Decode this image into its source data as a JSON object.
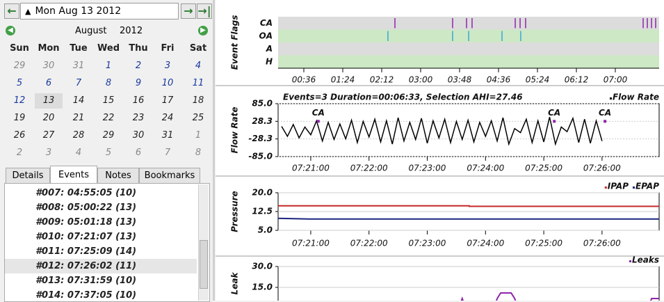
{
  "date_bar": {
    "date": "Mon Aug 13 2012"
  },
  "calendar": {
    "month": "August",
    "year": "2012",
    "weekdays": [
      "Sun",
      "Mon",
      "Tue",
      "Wed",
      "Thu",
      "Fri",
      "Sat"
    ],
    "weeks": [
      [
        29,
        30,
        31,
        1,
        2,
        3,
        4
      ],
      [
        5,
        6,
        7,
        8,
        9,
        10,
        11
      ],
      [
        12,
        13,
        14,
        15,
        16,
        17,
        18
      ],
      [
        19,
        20,
        21,
        22,
        23,
        24,
        25
      ],
      [
        26,
        27,
        28,
        29,
        30,
        31,
        1
      ],
      [
        2,
        3,
        4,
        5,
        6,
        7,
        8
      ]
    ]
  },
  "tabs": [
    "Details",
    "Events",
    "Notes",
    "Bookmarks"
  ],
  "events": [
    "#007: 04:55:05 (10)",
    "#008: 05:00:22 (13)",
    "#009: 05:01:18 (13)",
    "#010: 07:21:07 (13)",
    "#011: 07:25:09 (14)",
    "#012: 07:26:02 (11)",
    "#013: 07:31:59 (10)",
    "#014: 07:37:05 (10)"
  ],
  "graphs": {
    "event_flags": {
      "type": "event_flags",
      "y_title": "Event Flags",
      "rows": [
        {
          "name": "CA",
          "color": "#8e24aa",
          "x": [
            148.3,
            219.4,
            236.6,
            243.4,
            296.6,
            302.6,
            309.4,
            454.3,
            459.4,
            464.6,
            469.7
          ]
        },
        {
          "name": "OA",
          "color": "#3aa6d8",
          "x": [
            139.7,
            219.4,
            239.2,
            280.3,
            303.4
          ]
        },
        {
          "name": "A",
          "x": []
        },
        {
          "name": "H",
          "x": []
        }
      ],
      "xlim": [
        4.3,
        474
      ],
      "xticks": [
        {
          "value": 36,
          "label": "00:36"
        },
        {
          "value": 84,
          "label": "01:24"
        },
        {
          "value": 132,
          "label": "02:12"
        },
        {
          "value": 180,
          "label": "03:00"
        },
        {
          "value": 228,
          "label": "03:48"
        },
        {
          "value": 276,
          "label": "04:36"
        },
        {
          "value": 324,
          "label": "05:24"
        },
        {
          "value": 372,
          "label": "06:12"
        },
        {
          "value": 420,
          "label": "07:00"
        }
      ]
    },
    "flow_rate": {
      "type": "line",
      "y_title": "Flow Rate",
      "title": "Events=3 Duration=00:06:33, Selection AHI=27.46",
      "series": [
        {
          "name": "Flow Rate",
          "color": "#000000",
          "x": [
            440.5,
            440.6,
            440.7,
            440.8,
            440.9,
            441.0,
            441.1,
            441.2,
            441.3,
            441.4,
            441.5,
            441.6,
            441.7,
            441.8,
            441.9,
            442.0,
            442.1,
            442.2,
            442.3,
            442.4,
            442.5,
            442.6,
            442.7,
            442.8,
            442.9,
            443.0,
            443.1,
            443.2,
            443.3,
            443.4,
            443.5,
            443.6,
            443.7,
            443.8,
            443.9,
            444.0,
            444.1,
            444.2,
            444.3,
            444.4,
            444.5,
            444.6,
            444.7,
            444.8,
            444.9,
            445.0,
            445.1,
            445.2,
            445.3,
            445.4,
            445.5,
            445.6,
            445.7,
            445.8,
            445.9,
            446.0
          ],
          "values": [
            12,
            -20,
            18,
            -25,
            10,
            -15,
            30,
            -35,
            25,
            -30,
            20,
            -28,
            32,
            -40,
            28,
            -22,
            35,
            -38,
            30,
            -45,
            40,
            -35,
            25,
            -30,
            38,
            -42,
            30,
            -25,
            35,
            -40,
            28,
            -30,
            32,
            -38,
            25,
            -20,
            30,
            -35,
            40,
            -45,
            5,
            -8,
            35,
            -40,
            30,
            -38,
            42,
            -45,
            10,
            -5,
            38,
            -40,
            35,
            -42,
            30,
            -35
          ]
        }
      ],
      "annotations": [
        {
          "label": "CA",
          "x": 441.13,
          "y": 28.3
        },
        {
          "label": "CA",
          "x": 445.18,
          "y": 28.3
        },
        {
          "label": "CA",
          "x": 446.05,
          "y": 28.3
        }
      ],
      "annotation_color": "#8e24aa",
      "xlim": [
        440.44,
        446.98
      ],
      "ylim": [
        -85,
        85
      ],
      "grid": true,
      "yticks": [
        {
          "value": 85,
          "label": "85.0"
        },
        {
          "value": 28.3,
          "label": "28.3"
        },
        {
          "value": -28.3,
          "label": "-28.3"
        },
        {
          "value": -85,
          "label": "-85.0"
        }
      ],
      "xticks": [
        {
          "value": 441,
          "label": "07:21:00"
        },
        {
          "value": 442,
          "label": "07:22:00"
        },
        {
          "value": 443,
          "label": "07:23:00"
        },
        {
          "value": 444,
          "label": "07:24:00"
        },
        {
          "value": 445,
          "label": "07:25:00"
        },
        {
          "value": 446,
          "label": "07:26:00"
        }
      ]
    },
    "pressure": {
      "type": "line",
      "y_title": "Pressure",
      "series": [
        {
          "name": "IPAP",
          "color": "#c62828",
          "x": [
            440.44,
            443.72,
            443.72,
            446.98
          ],
          "values": [
            14.8,
            14.8,
            14.6,
            14.6
          ]
        },
        {
          "name": "EPAP",
          "color": "#1a237e",
          "x": [
            440.44,
            440.97,
            446.98
          ],
          "values": [
            9.8,
            9.5,
            9.5
          ]
        }
      ],
      "xlim": [
        440.44,
        446.98
      ],
      "ylim": [
        5,
        20
      ],
      "grid": true,
      "yticks": [
        {
          "value": 20,
          "label": "20.0"
        },
        12.5,
        {
          "value": 5,
          "label": "5.0"
        }
      ],
      "xticks": [
        {
          "value": 441,
          "label": "07:21:00"
        },
        {
          "value": 442,
          "label": "07:22:00"
        },
        {
          "value": 443,
          "label": "07:23:00"
        },
        {
          "value": 444,
          "label": "07:24:00"
        },
        {
          "value": 445,
          "label": "07:25:00"
        },
        {
          "value": 446,
          "label": "07:26:00"
        }
      ]
    },
    "leak": {
      "type": "line",
      "y_title": "Leak",
      "series": [
        {
          "name": "Leaks",
          "color": "#8e24aa",
          "x": [
            440.44,
            443.54,
            443.6,
            443.66,
            444.15,
            444.2,
            444.26,
            444.44,
            444.5,
            444.56,
            446.8,
            446.85,
            446.98
          ],
          "values": [
            0,
            0,
            7,
            0,
            0,
            7,
            11,
            11,
            7,
            0,
            0,
            7,
            7
          ]
        }
      ],
      "xlim": [
        440.44,
        446.98
      ],
      "ylim": [
        0,
        30
      ],
      "grid": true,
      "yticks": [
        {
          "value": 30,
          "label": "30.0"
        },
        {
          "value": 15,
          "label": "15.0"
        }
      ]
    }
  }
}
